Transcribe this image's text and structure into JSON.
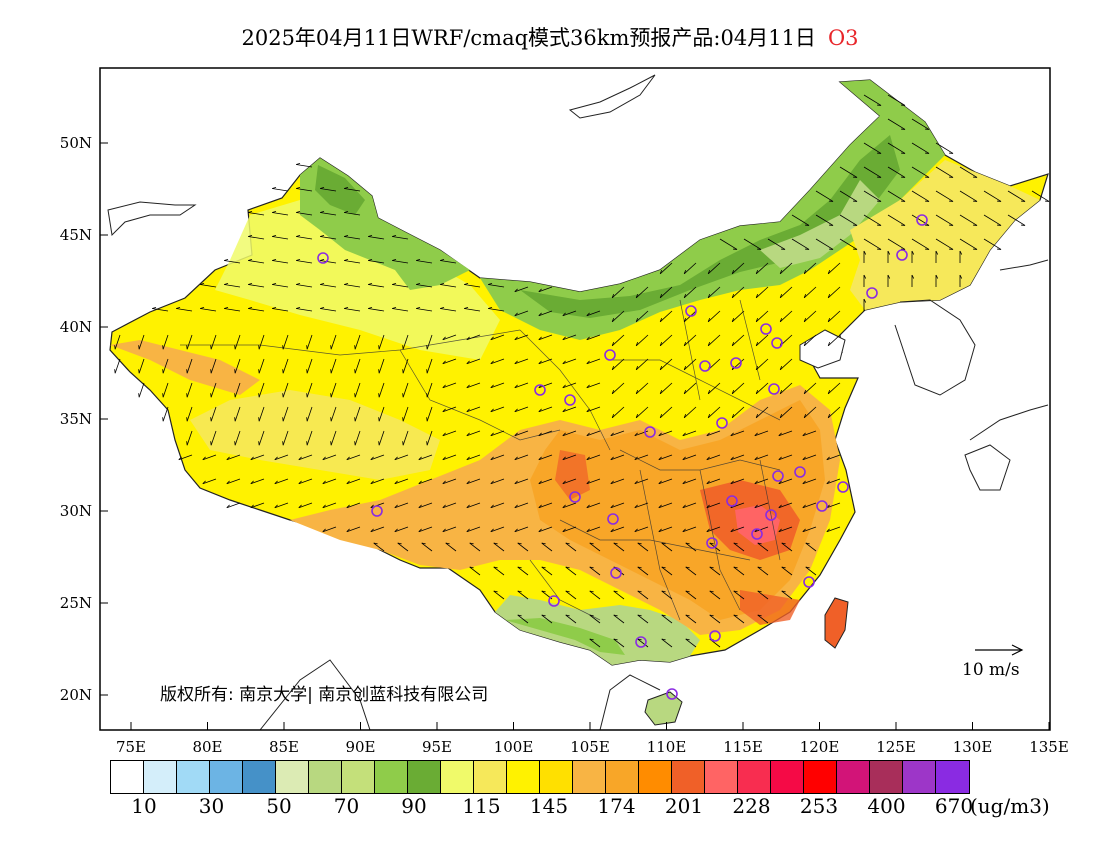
{
  "title": {
    "text": "2025年04月11日WRF/cmaq模式36km预报产品:04月11日",
    "pollutant": "O3"
  },
  "axes": {
    "x_ticks": [
      "75E",
      "80E",
      "85E",
      "90E",
      "95E",
      "100E",
      "105E",
      "110E",
      "115E",
      "120E",
      "125E",
      "130E",
      "135E"
    ],
    "y_ticks": [
      "50N",
      "45N",
      "40N",
      "35N",
      "30N",
      "25N",
      "20N"
    ]
  },
  "legend": {
    "colors": [
      "#ffffff",
      "#d4eefa",
      "#a1daf6",
      "#6cb4e4",
      "#4591c8",
      "#dcebb4",
      "#b8d880",
      "#c4e07a",
      "#8fcc4a",
      "#6aac34",
      "#f0fa6a",
      "#f6e85a",
      "#fff200",
      "#ffe000",
      "#f8b444",
      "#f8a628",
      "#ff8c00",
      "#f06028",
      "#ff6464",
      "#f82d50",
      "#f50a46",
      "#ff0000",
      "#d21478",
      "#a82e5a",
      "#9d36c8",
      "#8a2be2"
    ],
    "labels": [
      "10",
      "30",
      "50",
      "70",
      "90",
      "115",
      "145",
      "174",
      "201",
      "228",
      "253",
      "400",
      "670"
    ],
    "unit": "(ug/m3)"
  },
  "copyright": "版权所有: 南京大学| 南京创蓝科技有限公司",
  "wind_scale": {
    "label": "10  m/s"
  }
}
